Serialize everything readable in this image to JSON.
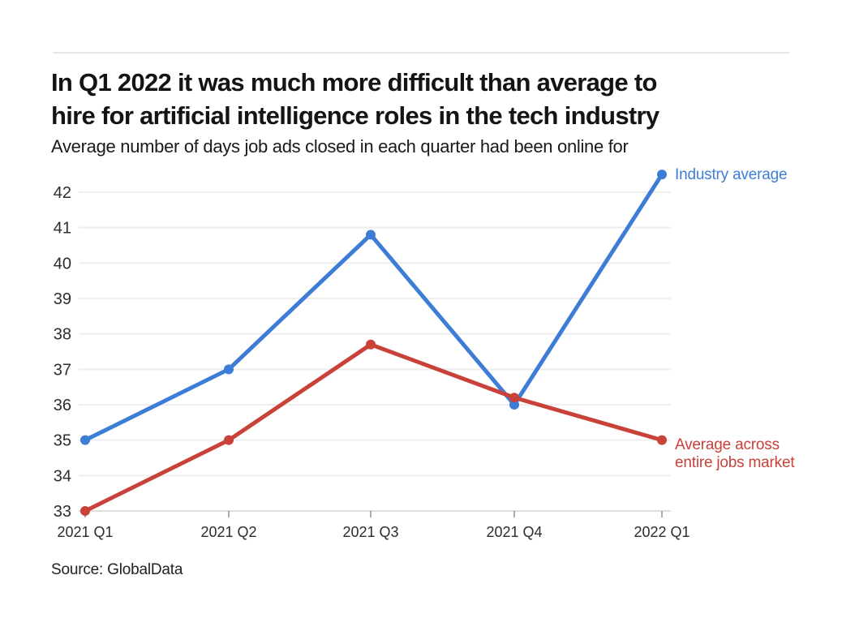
{
  "header": {
    "title": "In Q1 2022 it was much more difficult than average to hire for artificial intelligence roles in the tech industry",
    "title_lines": [
      "In Q1 2022 it was much more difficult than average to",
      "hire for artificial intelligence roles in the tech industry"
    ],
    "subtitle": "Average number of days job ads closed in each quarter had been online for"
  },
  "footer": {
    "source": "Source: GlobalData"
  },
  "chart_data": {
    "type": "line",
    "title": "In Q1 2022 it was much more difficult than average to hire for artificial intelligence roles in the tech industry",
    "subtitle": "Average number of days job ads closed in each quarter had been online for",
    "categories": [
      "2021 Q1",
      "2021 Q2",
      "2021 Q3",
      "2021 Q4",
      "2022 Q1"
    ],
    "series": [
      {
        "name": "Industry average",
        "color": "#3d7dd6",
        "values": [
          35,
          37,
          40.8,
          36,
          42.5
        ],
        "end_label_lines": [
          "Industry average"
        ]
      },
      {
        "name": "Average across entire jobs market",
        "color": "#c8423a",
        "values": [
          33,
          35,
          37.7,
          36.2,
          35
        ],
        "end_label_lines": [
          "Average across",
          "entire jobs market"
        ]
      }
    ],
    "y_ticks": [
      33,
      34,
      35,
      36,
      37,
      38,
      39,
      40,
      41,
      42
    ],
    "ylim": [
      33,
      42.5
    ],
    "xlabel": "",
    "ylabel": "",
    "grid": "horizontal",
    "legend_position": "line-end-labels",
    "source": "Source: GlobalData",
    "colors": {
      "gridline": "#eeeeee",
      "axis_line": "#dedede",
      "tick_mark": "#8f8f8f",
      "axis_text": "#2d2d2d"
    }
  }
}
